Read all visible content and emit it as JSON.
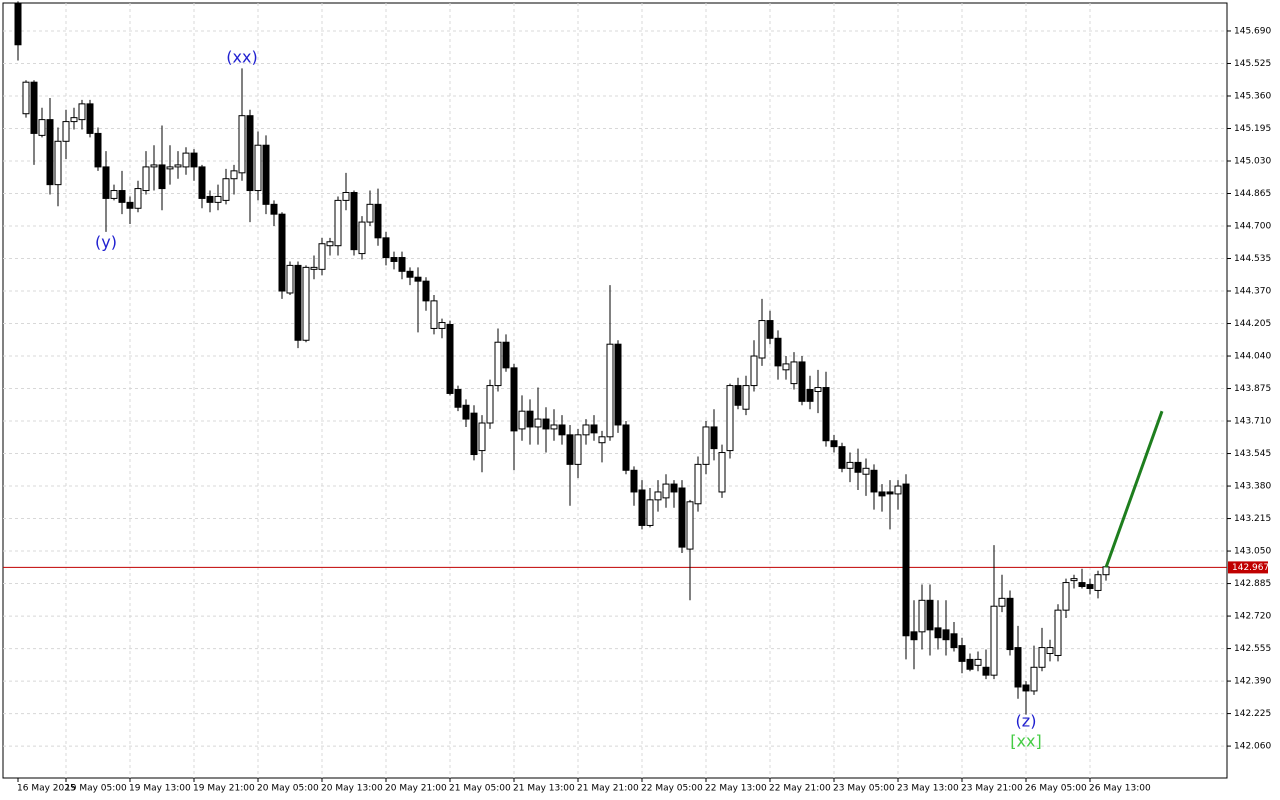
{
  "chart_data": {
    "type": "candlestick",
    "categories": [
      "16 May 2025",
      null,
      null,
      null,
      null,
      null,
      "19 May 05:00",
      null,
      null,
      null,
      null,
      null,
      null,
      null,
      "19 May 13:00",
      null,
      null,
      null,
      null,
      null,
      null,
      null,
      "19 May 21:00",
      null,
      null,
      null,
      null,
      null,
      null,
      null,
      "20 May 05:00",
      null,
      null,
      null,
      null,
      null,
      null,
      null,
      "20 May 13:00",
      null,
      null,
      null,
      null,
      null,
      null,
      null,
      "20 May 21:00",
      null,
      null,
      null,
      null,
      null,
      null,
      null,
      "21 May 05:00",
      null,
      null,
      null,
      null,
      null,
      null,
      null,
      "21 May 13:00",
      null,
      null,
      null,
      null,
      null,
      null,
      null,
      "21 May 21:00",
      null,
      null,
      null,
      null,
      null,
      null,
      null,
      "22 May 05:00",
      null,
      null,
      null,
      null,
      null,
      null,
      null,
      "22 May 13:00",
      null,
      null,
      null,
      null,
      null,
      null,
      null,
      "22 May 21:00",
      null,
      null,
      null,
      null,
      null,
      null,
      null,
      "23 May 05:00",
      null,
      null,
      null,
      null,
      null,
      null,
      null,
      "23 May 13:00",
      null,
      null,
      null,
      null,
      null,
      null,
      null,
      "23 May 21:00",
      null,
      null,
      null,
      null,
      null,
      null,
      null,
      "26 May 05:00",
      null,
      null,
      null,
      null,
      null,
      null,
      null,
      "26 May 13:00",
      null,
      null
    ],
    "open": [
      145.83,
      145.27,
      145.43,
      145.16,
      145.24,
      144.91,
      145.13,
      145.23,
      145.24,
      145.32,
      145.17,
      145.0,
      144.84,
      144.88,
      144.82,
      144.79,
      144.88,
      145.0,
      145.01,
      144.99,
      145.0,
      145.0,
      145.07,
      145.0,
      144.85,
      144.82,
      144.83,
      144.94,
      144.97,
      145.26,
      144.88,
      145.11,
      144.81,
      144.76,
      144.36,
      144.5,
      144.12,
      144.48,
      144.48,
      144.6,
      144.6,
      144.83,
      144.87,
      144.56,
      144.72,
      144.81,
      144.64,
      144.54,
      144.54,
      144.47,
      144.44,
      144.42,
      144.18,
      144.18,
      144.2,
      143.87,
      143.79,
      143.75,
      143.56,
      143.7,
      143.89,
      144.11,
      143.98,
      143.67,
      143.76,
      143.68,
      143.72,
      143.67,
      143.69,
      143.64,
      143.49,
      143.64,
      143.69,
      143.6,
      143.63,
      144.1,
      143.69,
      143.46,
      143.36,
      143.18,
      143.31,
      143.32,
      143.39,
      143.37,
      143.06,
      143.29,
      143.49,
      143.68,
      143.35,
      143.56,
      143.89,
      143.77,
      143.89,
      144.03,
      144.22,
      144.13,
      143.97,
      143.9,
      144.01,
      143.87,
      143.86,
      143.88,
      143.61,
      143.58,
      143.47,
      143.5,
      143.44,
      143.46,
      143.35,
      143.35,
      143.34,
      143.39,
      142.64,
      142.64,
      142.8,
      142.66,
      142.65,
      142.63,
      142.57,
      142.5,
      142.47,
      142.46,
      142.42,
      142.77,
      142.81,
      142.56,
      142.37,
      142.34,
      142.46,
      142.53,
      142.52,
      142.75,
      142.9,
      142.89,
      142.88,
      142.85,
      142.93
    ],
    "high": [
      145.84,
      145.44,
      145.44,
      145.3,
      145.35,
      145.2,
      145.29,
      145.3,
      145.34,
      145.34,
      145.2,
      145.08,
      144.91,
      144.98,
      144.85,
      144.93,
      145.08,
      145.11,
      145.21,
      145.11,
      145.08,
      145.1,
      145.09,
      145.01,
      144.88,
      144.91,
      144.99,
      145.01,
      145.5,
      145.29,
      145.18,
      145.16,
      144.83,
      144.77,
      144.52,
      144.52,
      144.5,
      144.55,
      144.64,
      144.64,
      144.85,
      144.97,
      144.88,
      144.75,
      144.88,
      144.89,
      144.67,
      144.57,
      144.57,
      144.49,
      144.49,
      144.44,
      144.35,
      144.23,
      144.22,
      143.89,
      143.82,
      143.79,
      143.74,
      143.92,
      144.18,
      144.15,
      144.0,
      143.84,
      143.82,
      143.88,
      143.78,
      143.77,
      143.74,
      143.69,
      143.67,
      143.72,
      143.74,
      143.66,
      144.4,
      144.12,
      143.71,
      143.48,
      143.41,
      143.37,
      143.41,
      143.44,
      143.41,
      143.41,
      143.31,
      143.53,
      143.71,
      143.77,
      143.59,
      143.9,
      143.93,
      143.94,
      144.12,
      144.33,
      144.27,
      144.17,
      144.04,
      144.06,
      144.04,
      143.94,
      143.97,
      143.96,
      143.64,
      143.6,
      143.55,
      143.57,
      143.52,
      143.49,
      143.39,
      143.41,
      143.41,
      143.44,
      142.8,
      142.88,
      142.88,
      142.8,
      142.8,
      142.69,
      142.61,
      142.53,
      142.54,
      142.55,
      143.08,
      142.93,
      142.85,
      142.67,
      142.39,
      142.57,
      142.66,
      142.6,
      142.78,
      142.91,
      142.93,
      142.96,
      142.91,
      142.95,
      142.98
    ],
    "low": [
      145.54,
      145.25,
      145.01,
      145.15,
      144.86,
      144.8,
      145.04,
      145.19,
      145.19,
      145.15,
      144.98,
      144.67,
      144.83,
      144.76,
      144.71,
      144.77,
      144.86,
      144.88,
      144.78,
      144.91,
      144.94,
      144.96,
      144.93,
      144.79,
      144.77,
      144.78,
      144.81,
      144.86,
      144.93,
      144.72,
      144.83,
      144.76,
      144.7,
      144.33,
      144.35,
      144.08,
      144.11,
      144.43,
      144.45,
      144.55,
      144.55,
      144.78,
      144.55,
      144.53,
      144.7,
      144.6,
      144.5,
      144.48,
      144.43,
      144.4,
      144.16,
      144.27,
      144.15,
      144.13,
      143.84,
      143.76,
      143.68,
      143.51,
      143.45,
      143.67,
      143.86,
      143.96,
      143.46,
      143.61,
      143.59,
      143.59,
      143.55,
      143.61,
      143.59,
      143.28,
      143.42,
      143.59,
      143.61,
      143.5,
      143.61,
      143.65,
      143.44,
      143.28,
      143.16,
      143.17,
      143.25,
      143.27,
      143.27,
      143.04,
      142.8,
      143.25,
      143.44,
      143.51,
      143.32,
      143.52,
      143.77,
      143.74,
      143.86,
      143.99,
      144.1,
      143.92,
      143.92,
      143.87,
      143.79,
      143.77,
      143.75,
      143.58,
      143.55,
      143.45,
      143.4,
      143.36,
      143.33,
      143.26,
      143.25,
      143.16,
      143.26,
      142.5,
      142.45,
      142.55,
      142.52,
      142.55,
      142.52,
      142.54,
      142.43,
      142.44,
      142.44,
      142.4,
      142.4,
      142.74,
      142.52,
      142.3,
      142.22,
      142.32,
      142.44,
      142.49,
      142.49,
      142.71,
      142.86,
      142.86,
      142.83,
      142.81,
      142.9
    ],
    "close": [
      145.62,
      145.43,
      145.17,
      145.24,
      144.91,
      145.13,
      145.23,
      145.25,
      145.32,
      145.17,
      145.0,
      144.84,
      144.88,
      144.82,
      144.79,
      144.89,
      145.0,
      145.01,
      144.89,
      145.0,
      145.01,
      145.07,
      145.0,
      144.84,
      144.82,
      144.85,
      144.94,
      144.98,
      145.26,
      144.88,
      145.11,
      144.81,
      144.76,
      144.37,
      144.5,
      144.12,
      144.49,
      144.49,
      144.61,
      144.62,
      144.83,
      144.87,
      144.58,
      144.72,
      144.81,
      144.64,
      144.54,
      144.52,
      144.47,
      144.44,
      144.42,
      144.32,
      144.32,
      144.21,
      143.85,
      143.78,
      143.72,
      143.54,
      143.7,
      143.89,
      144.11,
      143.98,
      143.66,
      143.76,
      143.68,
      143.72,
      143.67,
      143.69,
      143.64,
      143.49,
      143.64,
      143.69,
      143.65,
      143.63,
      144.1,
      143.69,
      143.46,
      143.35,
      143.18,
      143.31,
      143.35,
      143.39,
      143.35,
      143.07,
      143.3,
      143.49,
      143.68,
      143.57,
      143.55,
      143.89,
      143.79,
      143.89,
      144.04,
      144.22,
      144.13,
      143.99,
      144.0,
      144.01,
      143.81,
      143.81,
      143.88,
      143.61,
      143.58,
      143.47,
      143.5,
      143.45,
      143.47,
      143.35,
      143.33,
      143.34,
      143.38,
      142.62,
      142.6,
      142.8,
      142.65,
      142.61,
      142.6,
      142.56,
      142.49,
      142.45,
      142.5,
      142.42,
      142.77,
      142.81,
      142.55,
      142.36,
      142.34,
      142.46,
      142.56,
      142.56,
      142.75,
      142.89,
      142.91,
      142.87,
      142.86,
      142.93,
      142.97
    ],
    "up_color": "#ffffff",
    "down_color": "#000000",
    "ylim": [
      141.898,
      145.832
    ],
    "yticks": [
      {
        "value": 142.06,
        "label": "142.060"
      },
      142.225,
      {
        "value": 142.39,
        "label": "142.390"
      },
      142.555,
      {
        "value": 142.72,
        "label": "142.720"
      },
      142.885,
      {
        "value": 143.05,
        "label": "143.050"
      },
      143.215,
      {
        "value": 143.38,
        "label": "143.380"
      },
      143.545,
      {
        "value": 143.71,
        "label": "143.710"
      },
      143.875,
      {
        "value": 144.04,
        "label": "144.040"
      },
      144.205,
      {
        "value": 144.37,
        "label": "144.370"
      },
      144.535,
      {
        "value": 144.7,
        "label": "144.700"
      },
      144.865,
      {
        "value": 145.03,
        "label": "145.030"
      },
      145.195,
      {
        "value": 145.36,
        "label": "145.360"
      },
      145.525,
      {
        "value": 145.69,
        "label": "145.690"
      }
    ],
    "grid": true,
    "price_line": {
      "value": 142.967,
      "color": "#c00000"
    },
    "projection": {
      "color": "#1e7e1e",
      "x": [
        136,
        143
      ],
      "values": [
        142.967,
        143.76
      ]
    },
    "annotations": [
      {
        "text": "(xx)",
        "index": 28,
        "value": 145.553,
        "color": "#2020d0"
      },
      {
        "text": "(y)",
        "index": 11,
        "value": 144.614,
        "color": "#2020d0"
      },
      {
        "text": "(z)",
        "index": 126,
        "value": 142.182,
        "color": "#2020d0"
      },
      {
        "text": "[xx]",
        "index": 126,
        "value": 142.08,
        "color": "#44cc44"
      }
    ]
  }
}
